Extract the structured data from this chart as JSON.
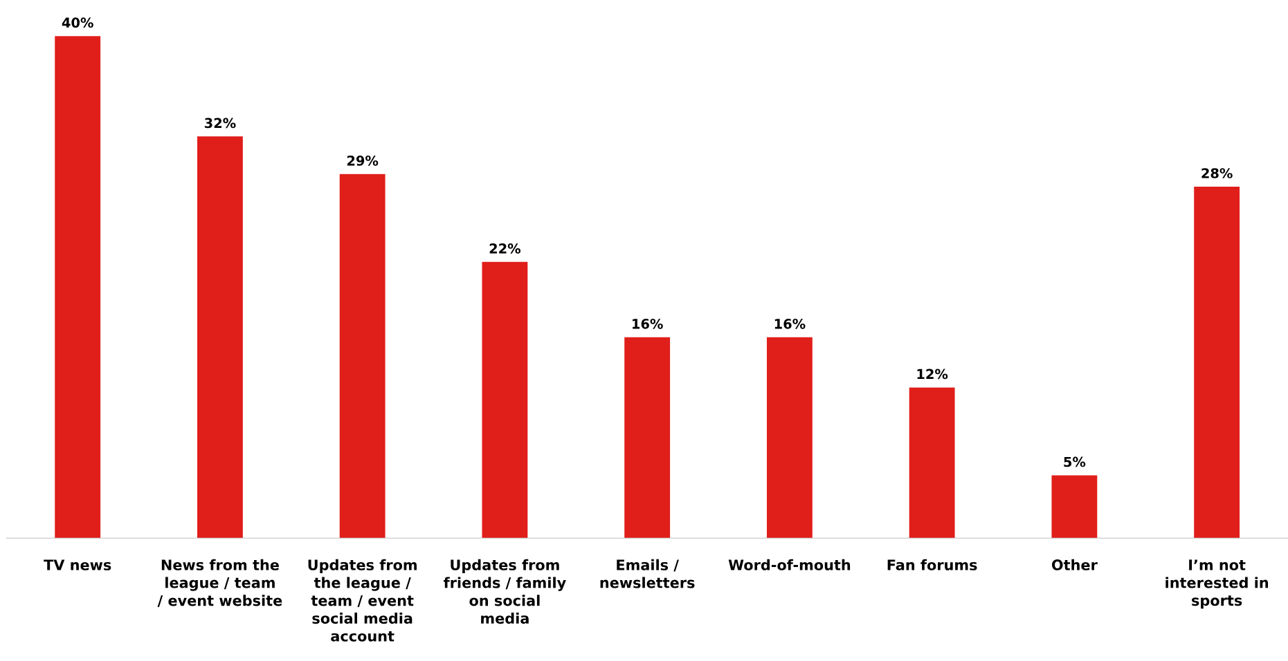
{
  "chart_data": {
    "type": "bar",
    "categories": [
      "TV news",
      "News from the\nleague / team\n/ event website",
      "Updates from\nthe league /\nteam / event\nsocial media\naccount",
      "Updates from\nfriends / family\non social\nmedia",
      "Emails /\nnewsletters",
      "Word-of-mouth",
      "Fan forums",
      "Other",
      "I’m not\ninterested in\nsports"
    ],
    "values": [
      40,
      32,
      29,
      22,
      16,
      16,
      12,
      5,
      28
    ],
    "value_labels": [
      "40%",
      "32%",
      "29%",
      "22%",
      "16%",
      "16%",
      "12%",
      "5%",
      "28%"
    ],
    "color": "#e01e1a",
    "tick_labels": "x",
    "grid": false,
    "legend": false
  }
}
